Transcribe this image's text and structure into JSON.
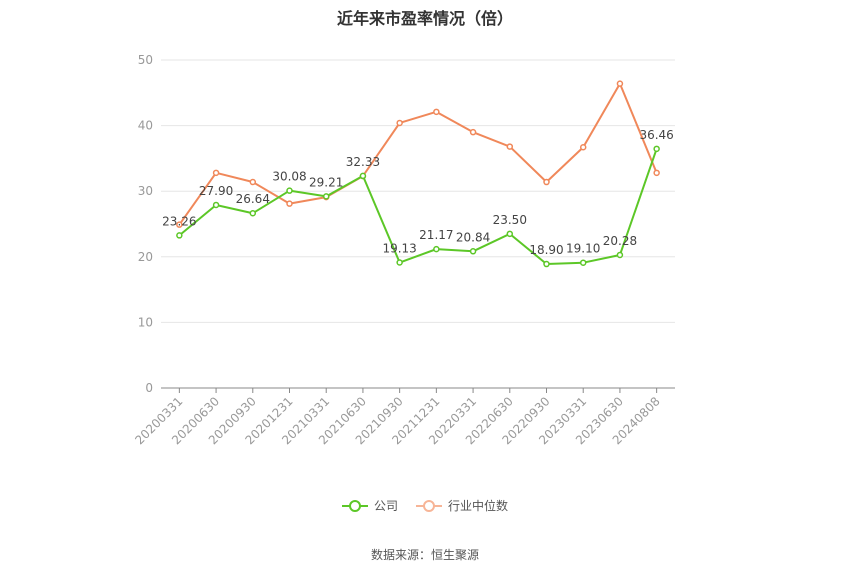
{
  "chart_data": {
    "type": "line",
    "title": "近年来市盈率情况（倍）",
    "categories": [
      "20200331",
      "20200630",
      "20200930",
      "20201231",
      "20210331",
      "20210630",
      "20210930",
      "20211231",
      "20220331",
      "20220630",
      "20220930",
      "20230331",
      "20230630",
      "20240808"
    ],
    "series": [
      {
        "name": "公司",
        "color": "#5cc727",
        "values": [
          23.26,
          27.9,
          26.64,
          30.08,
          29.21,
          32.33,
          19.13,
          21.17,
          20.84,
          23.5,
          18.9,
          19.1,
          20.28,
          36.46
        ],
        "labels": [
          "23.26",
          "27.90",
          "26.64",
          "30.08",
          "29.21",
          "32.33",
          "19.13",
          "21.17",
          "20.84",
          "23.50",
          "18.90",
          "19.10",
          "20.28",
          "36.46"
        ]
      },
      {
        "name": "行业中位数",
        "color": "#f0885a",
        "values": [
          24.9,
          32.8,
          31.4,
          28.1,
          29.1,
          32.3,
          40.4,
          42.1,
          39.0,
          36.8,
          31.4,
          36.7,
          46.4,
          32.8
        ]
      }
    ],
    "ylim": [
      0,
      50
    ],
    "yticks": [
      "0",
      "10",
      "20",
      "30",
      "40",
      "50"
    ],
    "grid": true,
    "legend_position": "bottom"
  },
  "source_text": "数据来源：恒生聚源"
}
